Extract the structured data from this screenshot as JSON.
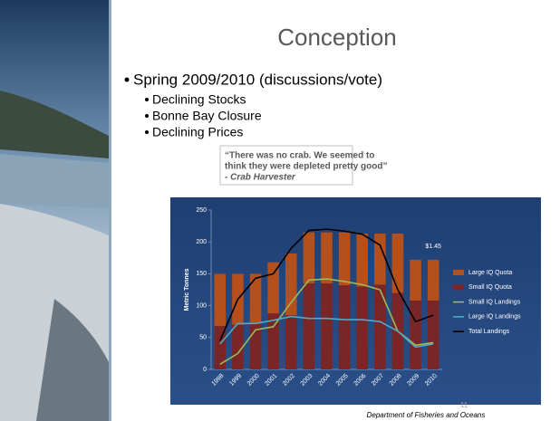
{
  "slide": {
    "title": "Conception",
    "bullet": "Spring 2009/2010 (discussions/vote)",
    "subbullets": [
      "Declining Stocks",
      "Bonne Bay Closure",
      "Declining Prices"
    ],
    "quote_lines": [
      "“There was no crab. We seemed to",
      "think they were depleted pretty good”"
    ],
    "quote_author": "- Crab Harvester",
    "page_number": "11",
    "footer": "Department of Fisheries and Oceans"
  },
  "chart_data": {
    "type": "bar",
    "ylabel": "Metric Tonnes",
    "categories": [
      "1998",
      "1999",
      "2000",
      "2001",
      "2002",
      "2003",
      "2004",
      "2005",
      "2006",
      "2007",
      "2008",
      "2009",
      "2010"
    ],
    "series": [
      {
        "name": "Large IQ Quota",
        "type": "bar",
        "color": "#b5501c",
        "values": [
          82,
          80,
          78,
          80,
          97,
          80,
          80,
          83,
          83,
          80,
          93,
          64,
          64
        ]
      },
      {
        "name": "Small IQ Quota",
        "type": "bar",
        "color": "#7b2626",
        "values": [
          68,
          70,
          72,
          88,
          85,
          135,
          135,
          132,
          130,
          133,
          120,
          108,
          108
        ]
      },
      {
        "name": "Small IQ Landings",
        "type": "line",
        "color": "#9bbb59",
        "values": [
          8,
          25,
          62,
          67,
          105,
          140,
          142,
          138,
          133,
          125,
          60,
          38,
          42
        ]
      },
      {
        "name": "Large IQ Landings",
        "type": "line",
        "color": "#4bacc6",
        "values": [
          40,
          72,
          72,
          77,
          83,
          80,
          80,
          78,
          78,
          75,
          60,
          35,
          40
        ]
      },
      {
        "name": "Total Landings",
        "type": "line",
        "color": "#000000",
        "values": [
          45,
          110,
          143,
          150,
          190,
          218,
          220,
          217,
          212,
          195,
          125,
          75,
          85
        ]
      }
    ],
    "annotations": [
      {
        "text": "$1.45",
        "category": "2010"
      }
    ],
    "ylim": [
      0,
      250
    ],
    "yticks": [
      0,
      50,
      100,
      150,
      200,
      250
    ],
    "grid": false,
    "legend": "right"
  }
}
